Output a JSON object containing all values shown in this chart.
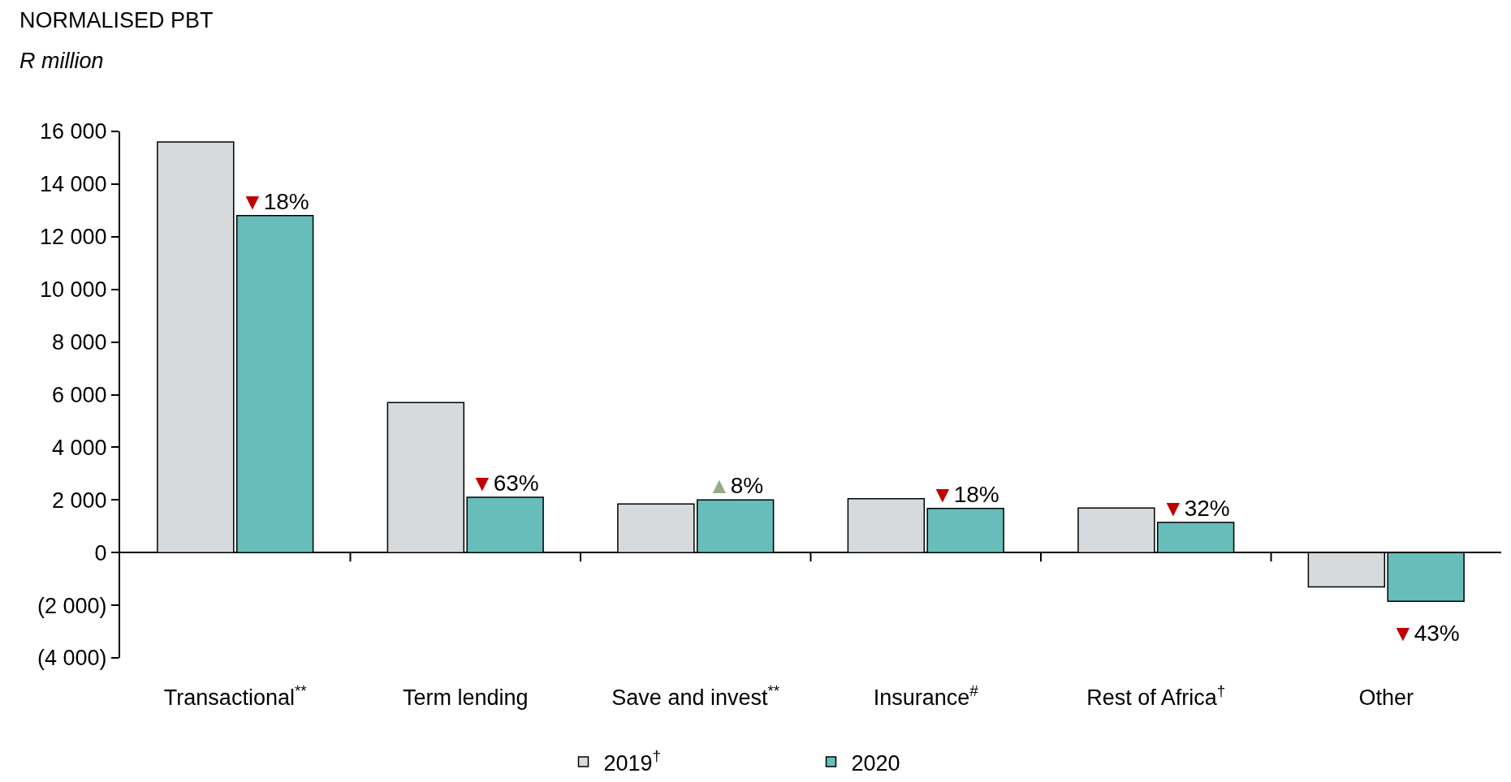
{
  "chart_data": {
    "type": "bar",
    "title": "NORMALISED PBT",
    "subtitle": "R million",
    "categories": [
      "Transactional$^{**}$",
      "Term lending",
      "Save and invest$^{**}$",
      "Insurance$^{#}$",
      "Rest of Africa$^{†}$",
      "Other"
    ],
    "series": [
      {
        "name": "2019$^{†}$",
        "color": "#d7dadc",
        "values": [
          15600,
          5700,
          1850,
          2050,
          1690,
          -1300
        ]
      },
      {
        "name": "2020",
        "color": "#66bdba",
        "values": [
          12800,
          2100,
          2000,
          1680,
          1150,
          -1850
        ]
      }
    ],
    "ylim": [
      -4000,
      16000
    ],
    "yticks": [
      {
        "value": -4000,
        "label": "(4 000)"
      },
      {
        "value": -2000,
        "label": "(2 000)"
      },
      {
        "value": 0,
        "label": "0"
      },
      {
        "value": 2000,
        "label": "2 000"
      },
      {
        "value": 4000,
        "label": "4 000"
      },
      {
        "value": 6000,
        "label": "6 000"
      },
      {
        "value": 8000,
        "label": "8 000"
      },
      {
        "value": 10000,
        "label": "10 000"
      },
      {
        "value": 12000,
        "label": "12 000"
      },
      {
        "value": 14000,
        "label": "14 000"
      },
      {
        "value": 16000,
        "label": "16 000"
      }
    ],
    "legend": "bottom",
    "annotations": [
      {
        "text": "▼18%",
        "x": "Transactional$^{**}$",
        "y": 12800
      },
      {
        "text": "▼63%",
        "x": "Term lending",
        "y": 2100
      },
      {
        "text": "▲8%",
        "x": "Save and invest$^{**}$",
        "y": 2000
      },
      {
        "text": "▼18%",
        "x": "Insurance$^{#}$",
        "y": 1680
      },
      {
        "text": "▼32%",
        "x": "Rest of Africa$^{†}$",
        "y": 1150
      },
      {
        "text": "▼43%",
        "x": "Other",
        "y": -1850
      }
    ]
  }
}
